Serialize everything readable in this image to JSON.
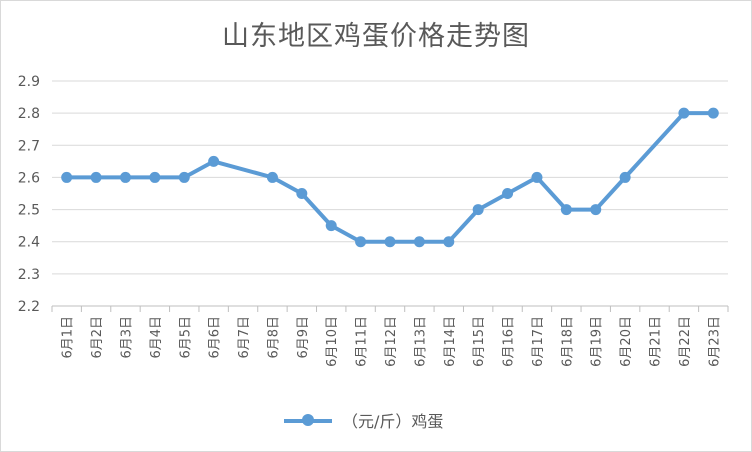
{
  "chart_data": {
    "type": "line",
    "title": "山东地区鸡蛋价格走势图",
    "xlabel": "",
    "ylabel": "",
    "categories": [
      "6月1日",
      "6月2日",
      "6月3日",
      "6月4日",
      "6月5日",
      "6月6日",
      "6月7日",
      "6月8日",
      "6月9日",
      "6月10日",
      "6月11日",
      "6月12日",
      "6月13日",
      "6月14日",
      "6月15日",
      "6月16日",
      "6月17日",
      "6月18日",
      "6月19日",
      "6月20日",
      "6月21日",
      "6月22日",
      "6月23日"
    ],
    "series": [
      {
        "name": "（元/斤）鸡蛋",
        "color": "#5b9bd5",
        "values": [
          2.6,
          2.6,
          2.6,
          2.6,
          2.6,
          2.65,
          null,
          2.6,
          2.55,
          2.45,
          2.4,
          2.4,
          2.4,
          2.4,
          2.5,
          2.55,
          2.6,
          2.5,
          2.5,
          2.6,
          null,
          2.8,
          2.8
        ]
      }
    ],
    "ylim": [
      2.2,
      2.9
    ],
    "yticks": [
      "2.2",
      "2.3",
      "2.4",
      "2.5",
      "2.6",
      "2.7",
      "2.8",
      "2.9"
    ],
    "grid": true,
    "legend": "bottom",
    "gap_handling": "connect"
  }
}
